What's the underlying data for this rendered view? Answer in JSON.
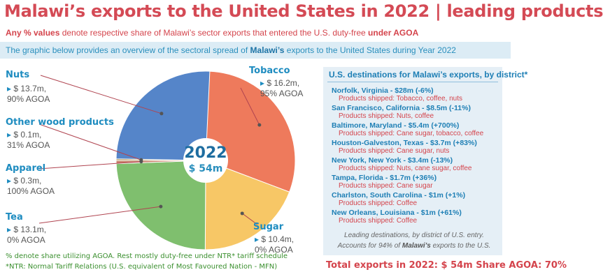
{
  "header": {
    "title": "Malawi’s exports to the United States in 2022  |  leading products",
    "note_bold": "Any % values",
    "note_text": " denote respective share of Malawi’s sector exports that entered the U.S. duty-free ",
    "note_bold2": "under AGOA",
    "band_text_1": "The graphic below provides an overview of the sectoral spread of ",
    "band_bold": "Malawi’s",
    "band_text_2": " exports to the United States during Year 2022"
  },
  "center": {
    "year": "2022",
    "total": "$ 54m"
  },
  "chart_data": {
    "type": "pie",
    "unit": "$ m",
    "slices": [
      {
        "name": "Tobacco",
        "value": 16.2,
        "value_label": "$ 16.2m,",
        "agoa": "95% AGOA",
        "color": "#ee7a5c"
      },
      {
        "name": "Sugar",
        "value": 10.4,
        "value_label": "$ 10.4m,",
        "agoa": "0% AGOA",
        "color": "#f7c766"
      },
      {
        "name": "Tea",
        "value": 13.1,
        "value_label": "$ 13.1m,",
        "agoa": "0% AGOA",
        "color": "#7fbf6e"
      },
      {
        "name": "Apparel",
        "value": 0.3,
        "value_label": "$ 0.3m,",
        "agoa": "100% AGOA",
        "color": "#c97f6a"
      },
      {
        "name": "Other wood products",
        "value": 0.1,
        "value_label": "$ 0.1m,",
        "agoa": "31% AGOA",
        "color": "#a98f4a"
      },
      {
        "name": "Nuts",
        "value": 13.7,
        "value_label": "$ 13.7m,",
        "agoa": "90% AGOA",
        "color": "#5585c9"
      }
    ]
  },
  "panel": {
    "title": "U.S. destinations for Malawi’s exports, by district*",
    "destinations": [
      {
        "title": "Norfolk, Virginia  -  $28m (-6%)",
        "sub": "Products shipped: Tobacco,  coffee,  nuts"
      },
      {
        "title": "San Francisco, California  -  $8.5m (-11%)",
        "sub": "Products shipped: Nuts, coffee"
      },
      {
        "title": "Baltimore, Maryland  -  $5.4m (+700%)",
        "sub": "Products shipped: Cane sugar, tobacco, coffee"
      },
      {
        "title": "Houston-Galveston, Texas  -  $3.7m (+83%)",
        "sub": "Products shipped: Cane sugar, nuts"
      },
      {
        "title": "New York, New York  -  $3.4m (-13%)",
        "sub": "Products shipped: Nuts, cane sugar, coffee"
      },
      {
        "title": "Tampa, Florida  -  $1.7m (+36%)",
        "sub": "Products shipped: Cane sugar"
      },
      {
        "title": "Charlston, South Carolina  -  $1m (+1%)",
        "sub": "Products shipped: Coffee"
      },
      {
        "title": "New Orleans, Louisiana  -  $1m (+61%)",
        "sub": "Products shipped: Coffee"
      }
    ],
    "foot1": "Leading destinations, by district of U.S. entry.",
    "foot2_a": "Accounts for 94% of ",
    "foot2_b": "Malawi’s",
    "foot2_c": " exports to the U.S."
  },
  "totals": {
    "text": "Total exports in 2022: $ 54m    Share AGOA:  70%"
  },
  "footnotes": {
    "line1": "% denote share utilizing AGOA. Rest mostly duty-free under NTR* tariff schedule",
    "line2": "*NTR: Normal Tariff Relations (U.S. equivalent of Most Favoured Nation - MFN)"
  }
}
